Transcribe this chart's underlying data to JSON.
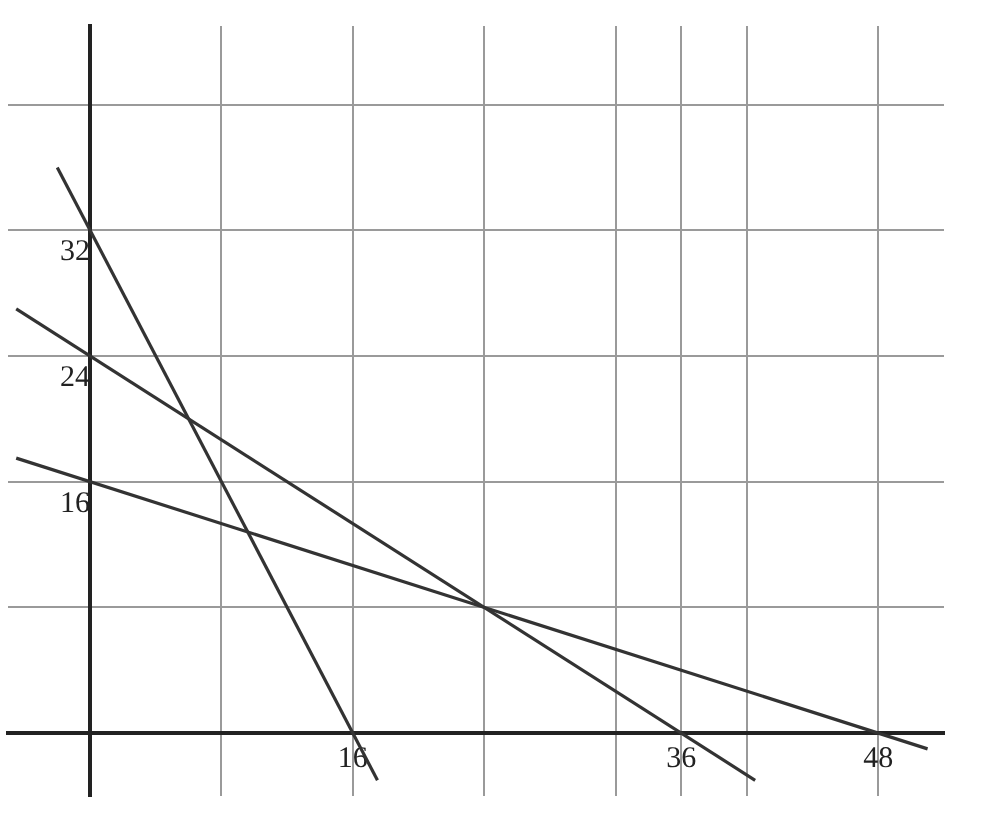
{
  "chart_data": {
    "type": "line",
    "xlim": [
      -5,
      52
    ],
    "ylim": [
      -4,
      45
    ],
    "xticks": [
      {
        "value": 8,
        "label": null
      },
      16,
      {
        "value": 24,
        "label": null
      },
      {
        "value": 32,
        "label": null
      },
      36,
      {
        "value": 40,
        "label": null
      },
      48
    ],
    "yticks": [
      {
        "value": 8,
        "label": null
      },
      16,
      24,
      32,
      {
        "value": 40,
        "label": null
      }
    ],
    "grid": true,
    "legend": false,
    "marker": "none",
    "line_style": "solid",
    "series": [
      {
        "color": "#333333",
        "x": [
          -2,
          17.5
        ],
        "values": [
          36,
          -3
        ]
      },
      {
        "color": "#333333",
        "x": [
          -4.5,
          40.5
        ],
        "values": [
          27,
          -3
        ]
      },
      {
        "color": "#333333",
        "x": [
          -4.5,
          51
        ],
        "values": [
          17.5,
          -1
        ]
      }
    ]
  }
}
